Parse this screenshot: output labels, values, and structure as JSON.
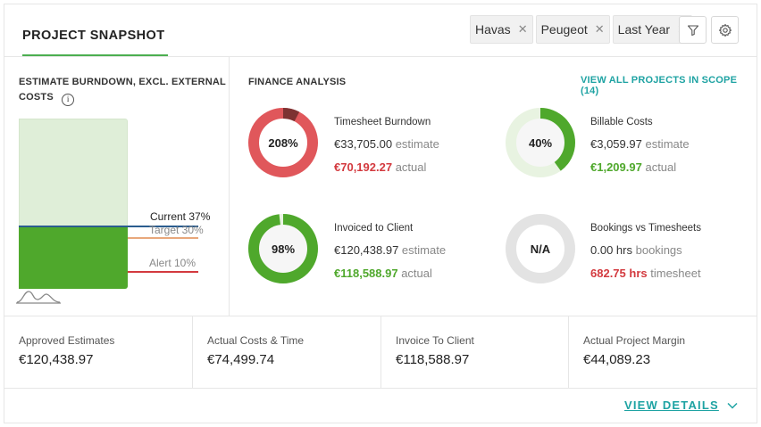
{
  "header": {
    "title": "PROJECT SNAPSHOT",
    "filters": [
      {
        "label": "Havas"
      },
      {
        "label": "Peugeot"
      },
      {
        "label": "Last Year"
      }
    ],
    "filter_icon": "filter-icon",
    "settings_icon": "gear-icon"
  },
  "burndown": {
    "title_line1": "ESTIMATE BURNDOWN, EXCL. EXTERNAL",
    "title_line2": "COSTS",
    "info_glyph": "i",
    "current_label": "Current 37%",
    "target_label": "Target 30%",
    "alert_label": "Alert 10%",
    "current_pct": 37,
    "target_pct": 30,
    "alert_pct": 10,
    "colors": {
      "fill": "#4fa82c",
      "bg": "#dfeed8",
      "current": "#2b5d8f",
      "target": "#e8a87c",
      "alert": "#d33a3f"
    }
  },
  "finance": {
    "title": "FINANCE ANALYSIS",
    "view_all": "VIEW ALL PROJECTS IN SCOPE (14)",
    "metrics": {
      "timesheet": {
        "title": "Timesheet Burndown",
        "pct_label": "208%",
        "pct": 208,
        "estimate_value": "€33,705.00",
        "estimate_label": "estimate",
        "actual_value": "€70,192.27",
        "actual_label": "actual"
      },
      "billable": {
        "title": "Billable Costs",
        "pct_label": "40%",
        "pct": 40,
        "estimate_value": "€3,059.97",
        "estimate_label": "estimate",
        "actual_value": "€1,209.97",
        "actual_label": "actual"
      },
      "invoiced": {
        "title": "Invoiced to Client",
        "pct_label": "98%",
        "pct": 98,
        "estimate_value": "€120,438.97",
        "estimate_label": "estimate",
        "actual_value": "€118,588.97",
        "actual_label": "actual"
      },
      "bookings": {
        "title": "Bookings vs Timesheets",
        "pct_label": "N/A",
        "bookings_value": "0.00 hrs",
        "bookings_label": "bookings",
        "timesheet_value": "682.75 hrs",
        "timesheet_label": "timesheet"
      }
    }
  },
  "summary": [
    {
      "label": "Approved Estimates",
      "value": "€120,438.97"
    },
    {
      "label": "Actual Costs & Time",
      "value": "€74,499.74"
    },
    {
      "label": "Invoice To Client",
      "value": "€118,588.97"
    },
    {
      "label": "Actual Project Margin",
      "value": "€44,089.23"
    }
  ],
  "footer": {
    "view_details": "VIEW DETAILS"
  }
}
